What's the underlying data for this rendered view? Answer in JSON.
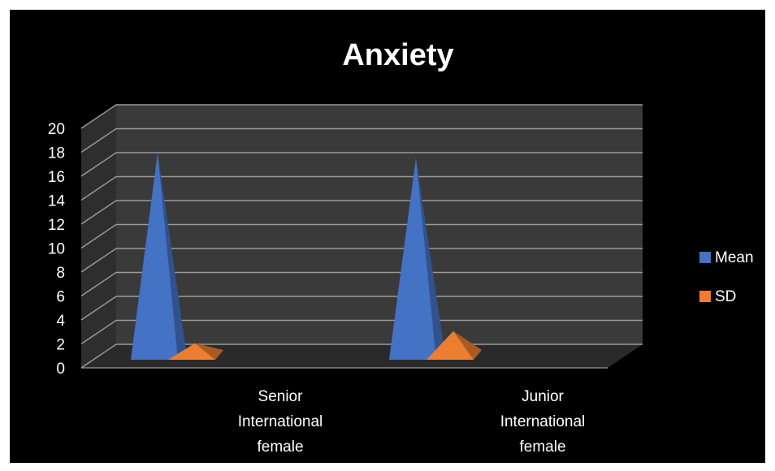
{
  "chart_data": {
    "type": "bar",
    "shape": "3d-pyramid",
    "title": "Anxiety",
    "categories": [
      [
        "Senior",
        "International",
        "female"
      ],
      [
        "Junior",
        "International",
        "female"
      ]
    ],
    "series": [
      {
        "name": "Mean",
        "values": [
          18.8,
          18.3
        ],
        "color": "#4472C4"
      },
      {
        "name": "SD",
        "values": [
          1.5,
          2.6
        ],
        "color": "#ED7D31"
      }
    ],
    "ylim": [
      0,
      20
    ],
    "yticks": [
      0,
      2,
      4,
      6,
      8,
      10,
      12,
      14,
      16,
      18,
      20
    ],
    "grid": true,
    "legend_position": "right",
    "colors": {
      "background": "#000000",
      "back_wall": "#3a3a3a",
      "side_wall": "#2e2e2e",
      "floor": "#2a2a2a",
      "grid": "#9a9a9a",
      "text": "#ffffff"
    }
  }
}
